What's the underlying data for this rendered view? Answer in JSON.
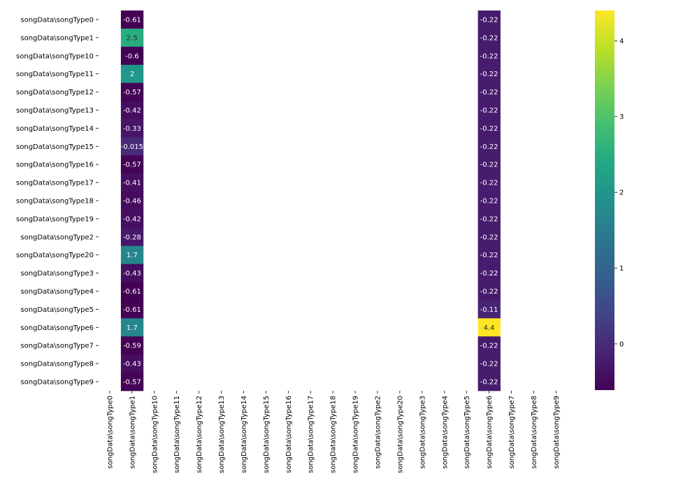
{
  "chart_data": {
    "type": "heatmap",
    "title": "",
    "xlabel": "",
    "ylabel": "",
    "rows": [
      "songData\\songType0",
      "songData\\songType1",
      "songData\\songType10",
      "songData\\songType11",
      "songData\\songType12",
      "songData\\songType13",
      "songData\\songType14",
      "songData\\songType15",
      "songData\\songType16",
      "songData\\songType17",
      "songData\\songType18",
      "songData\\songType19",
      "songData\\songType2",
      "songData\\songType20",
      "songData\\songType3",
      "songData\\songType4",
      "songData\\songType5",
      "songData\\songType6",
      "songData\\songType7",
      "songData\\songType8",
      "songData\\songType9"
    ],
    "columns": [
      "songData\\songType0",
      "songData\\songType1",
      "songData\\songType10",
      "songData\\songType11",
      "songData\\songType12",
      "songData\\songType13",
      "songData\\songType14",
      "songData\\songType15",
      "songData\\songType16",
      "songData\\songType17",
      "songData\\songType18",
      "songData\\songType19",
      "songData\\songType2",
      "songData\\songType20",
      "songData\\songType3",
      "songData\\songType4",
      "songData\\songType5",
      "songData\\songType6",
      "songData\\songType7",
      "songData\\songType8",
      "songData\\songType9"
    ],
    "filled_columns": [
      {
        "column": "songData\\songType1",
        "values": [
          -0.61,
          2.5,
          -0.6,
          2,
          -0.57,
          -0.42,
          -0.33,
          -0.015,
          -0.57,
          -0.41,
          -0.46,
          -0.42,
          -0.28,
          1.7,
          -0.43,
          -0.61,
          -0.61,
          1.7,
          -0.59,
          -0.43,
          -0.57
        ],
        "labels": [
          "-0.61",
          "2.5",
          "-0.6",
          "2",
          "-0.57",
          "-0.42",
          "-0.33",
          "-0.015",
          "-0.57",
          "-0.41",
          "-0.46",
          "-0.42",
          "-0.28",
          "1.7",
          "-0.43",
          "-0.61",
          "-0.61",
          "1.7",
          "-0.59",
          "-0.43",
          "-0.57"
        ]
      },
      {
        "column": "songData\\songType6",
        "values": [
          -0.22,
          -0.22,
          -0.22,
          -0.22,
          -0.22,
          -0.22,
          -0.22,
          -0.22,
          -0.22,
          -0.22,
          -0.22,
          -0.22,
          -0.22,
          -0.22,
          -0.22,
          -0.22,
          -0.11,
          4.4,
          -0.22,
          -0.22,
          -0.22
        ],
        "labels": [
          "-0.22",
          "-0.22",
          "-0.22",
          "-0.22",
          "-0.22",
          "-0.22",
          "-0.22",
          "-0.22",
          "-0.22",
          "-0.22",
          "-0.22",
          "-0.22",
          "-0.22",
          "-0.22",
          "-0.22",
          "-0.22",
          "-0.11",
          "4.4",
          "-0.22",
          "-0.22",
          "-0.22"
        ]
      }
    ],
    "colormap": "viridis",
    "vmin": -0.61,
    "vmax": 4.4,
    "colorbar_ticks": [
      0,
      1,
      2,
      3,
      4
    ],
    "colorbar_tick_labels": [
      "0",
      "1",
      "2",
      "3",
      "4"
    ]
  }
}
